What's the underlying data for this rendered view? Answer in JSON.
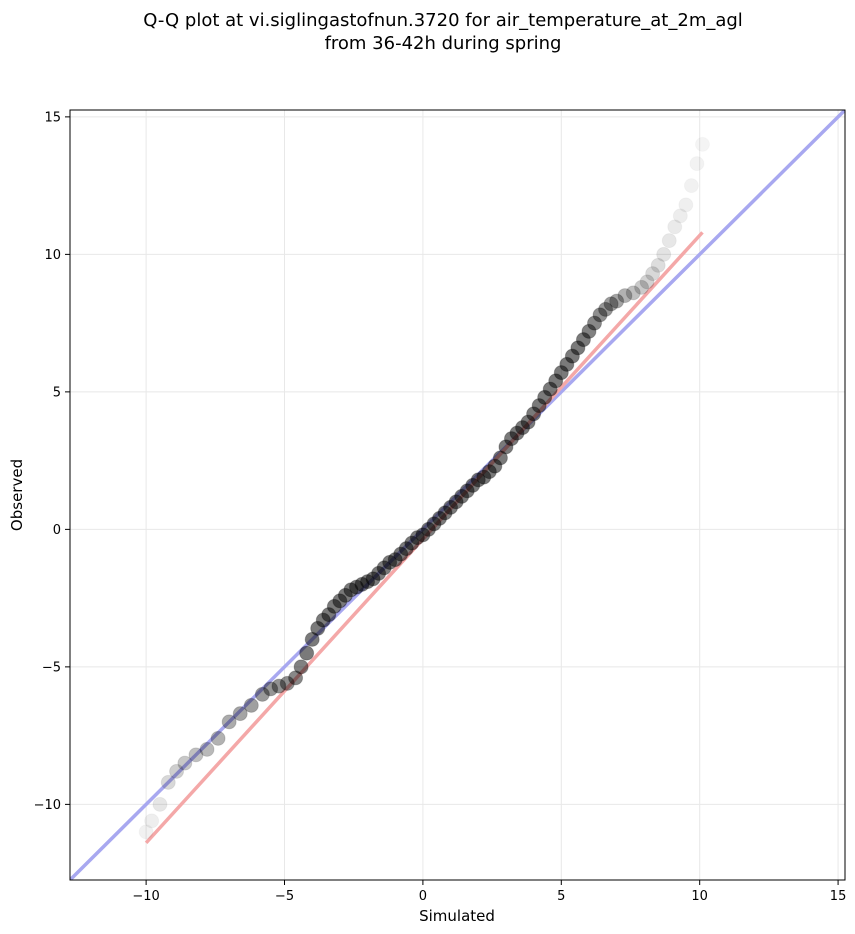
{
  "chart_data": {
    "type": "scatter",
    "title_line1": "Q-Q plot at vi.siglingastofnun.3720 for air_temperature_at_2m_agl",
    "title_line2": "from 36-42h during spring",
    "xlabel": "Simulated",
    "ylabel": "Observed",
    "xlim": [
      -12.75,
      15.25
    ],
    "ylim": [
      -12.75,
      15.25
    ],
    "xticks": [
      -10,
      -5,
      0,
      5,
      10,
      15
    ],
    "yticks": [
      -10,
      -5,
      0,
      5,
      10,
      15
    ],
    "xtick_labels": [
      "−10",
      "−5",
      "0",
      "5",
      "10",
      "15"
    ],
    "ytick_labels": [
      "−10",
      "−5",
      "0",
      "5",
      "10",
      "15"
    ],
    "grid": true,
    "reference_line": {
      "color": "#a8a8f0",
      "from": [
        -12.75,
        -12.75
      ],
      "to": [
        15.25,
        15.25
      ]
    },
    "fit_line": {
      "color": "#f4a8a8",
      "from": [
        -10.0,
        -11.4
      ],
      "to": [
        10.1,
        10.8
      ]
    },
    "points": {
      "x": [
        -10.0,
        -9.8,
        -9.5,
        -9.2,
        -8.9,
        -8.6,
        -8.2,
        -7.8,
        -7.4,
        -7.0,
        -6.6,
        -6.2,
        -5.8,
        -5.5,
        -5.2,
        -4.9,
        -4.6,
        -4.4,
        -4.2,
        -4.0,
        -3.8,
        -3.6,
        -3.4,
        -3.2,
        -3.0,
        -2.8,
        -2.6,
        -2.4,
        -2.2,
        -2.0,
        -1.8,
        -1.6,
        -1.4,
        -1.2,
        -1.0,
        -0.8,
        -0.6,
        -0.4,
        -0.2,
        0.0,
        0.2,
        0.4,
        0.6,
        0.8,
        1.0,
        1.2,
        1.4,
        1.6,
        1.8,
        2.0,
        2.2,
        2.4,
        2.6,
        2.8,
        3.0,
        3.2,
        3.4,
        3.6,
        3.8,
        4.0,
        4.2,
        4.4,
        4.6,
        4.8,
        5.0,
        5.2,
        5.4,
        5.6,
        5.8,
        6.0,
        6.2,
        6.4,
        6.6,
        6.8,
        7.0,
        7.3,
        7.6,
        7.9,
        8.1,
        8.3,
        8.5,
        8.7,
        8.9,
        9.1,
        9.3,
        9.5,
        9.7,
        9.9,
        10.1
      ],
      "y": [
        -11.0,
        -10.6,
        -10.0,
        -9.2,
        -8.8,
        -8.5,
        -8.2,
        -8.0,
        -7.6,
        -7.0,
        -6.7,
        -6.4,
        -6.0,
        -5.8,
        -5.7,
        -5.6,
        -5.4,
        -5.0,
        -4.5,
        -4.0,
        -3.6,
        -3.3,
        -3.1,
        -2.8,
        -2.6,
        -2.4,
        -2.2,
        -2.1,
        -2.0,
        -1.9,
        -1.8,
        -1.6,
        -1.4,
        -1.2,
        -1.1,
        -0.9,
        -0.7,
        -0.5,
        -0.3,
        -0.2,
        0.0,
        0.2,
        0.4,
        0.6,
        0.8,
        1.0,
        1.2,
        1.4,
        1.6,
        1.8,
        1.9,
        2.1,
        2.3,
        2.6,
        3.0,
        3.3,
        3.5,
        3.7,
        3.9,
        4.2,
        4.5,
        4.8,
        5.1,
        5.4,
        5.7,
        6.0,
        6.3,
        6.6,
        6.9,
        7.2,
        7.5,
        7.8,
        8.0,
        8.2,
        8.3,
        8.5,
        8.6,
        8.8,
        9.0,
        9.3,
        9.6,
        10.0,
        10.5,
        11.0,
        11.4,
        11.8,
        12.5,
        13.3,
        14.0
      ],
      "alpha": [
        0.1,
        0.12,
        0.18,
        0.28,
        0.35,
        0.4,
        0.45,
        0.5,
        0.55,
        0.6,
        0.65,
        0.68,
        0.72,
        0.75,
        0.78,
        0.8,
        0.85,
        0.9,
        0.95,
        0.95,
        0.95,
        0.95,
        0.95,
        0.95,
        0.95,
        0.95,
        0.95,
        0.95,
        0.95,
        0.95,
        0.95,
        0.95,
        0.95,
        0.95,
        0.95,
        0.95,
        0.95,
        0.95,
        0.95,
        0.95,
        0.95,
        0.95,
        0.95,
        0.95,
        0.95,
        0.95,
        0.95,
        0.95,
        0.95,
        0.95,
        0.95,
        0.95,
        0.95,
        0.95,
        0.95,
        0.95,
        0.95,
        0.95,
        0.95,
        0.95,
        0.95,
        0.95,
        0.95,
        0.95,
        0.95,
        0.95,
        0.95,
        0.95,
        0.95,
        0.9,
        0.85,
        0.8,
        0.75,
        0.7,
        0.65,
        0.55,
        0.45,
        0.38,
        0.32,
        0.28,
        0.24,
        0.2,
        0.17,
        0.15,
        0.13,
        0.11,
        0.1,
        0.09,
        0.08
      ],
      "color": "#000000"
    }
  }
}
